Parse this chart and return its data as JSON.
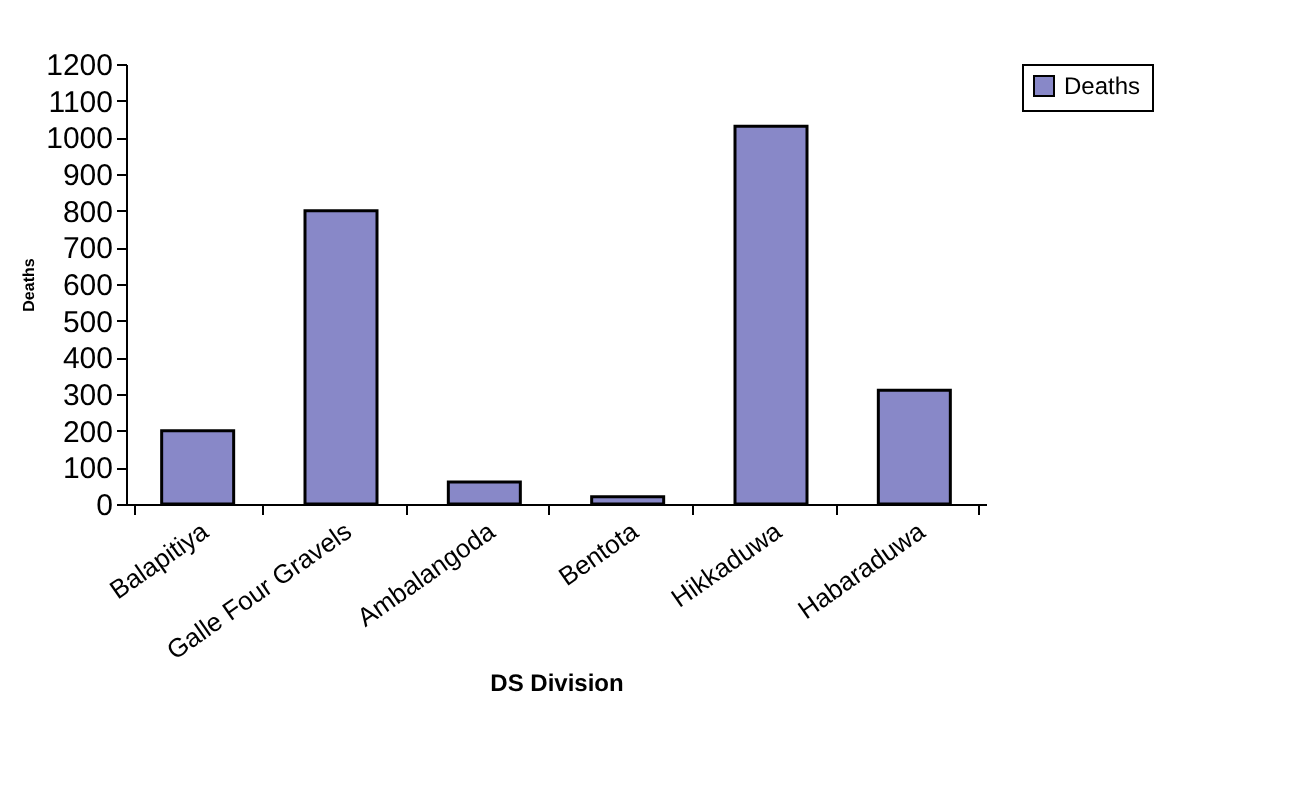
{
  "chart_data": {
    "type": "bar",
    "xlabel": "DS Division",
    "ylabel": "Deaths",
    "categories": [
      "Balapitiya",
      "Galle Four Gravels",
      "Ambalangoda",
      "Bentota",
      "Hikkaduwa",
      "Habaraduwa"
    ],
    "series": [
      {
        "name": "Deaths",
        "color": "#8888c8",
        "values": [
          200,
          800,
          60,
          20,
          1030,
          310
        ]
      }
    ],
    "ylim": [
      0,
      1200
    ],
    "yticks": [
      0,
      100,
      200,
      300,
      400,
      500,
      600,
      700,
      800,
      900,
      1000,
      1100,
      1200
    ],
    "grid": false,
    "legend": "right"
  }
}
